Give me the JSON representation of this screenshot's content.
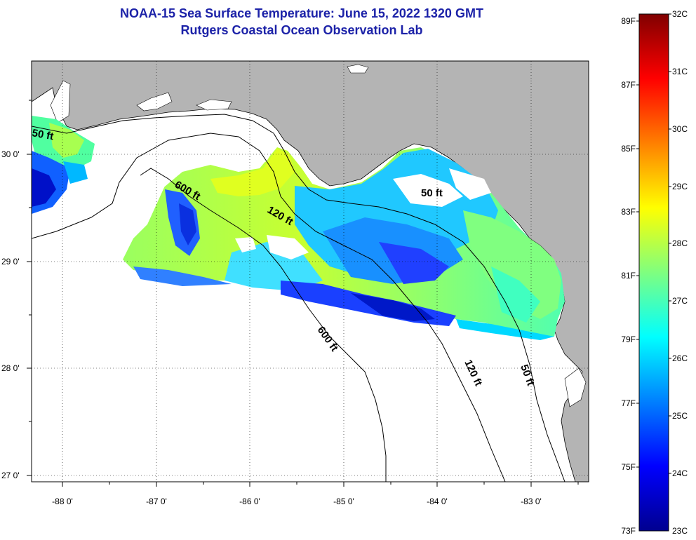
{
  "header": {
    "title": "NOAA-15 Sea Surface Temperature:  June 15, 2022 1320 GMT",
    "subtitle": "Rutgers Coastal Ocean Observation Lab"
  },
  "map": {
    "longitude_labels": [
      "-88 0'",
      "-87 0'",
      "-86 0'",
      "-85 0'",
      "-84 0'",
      "-83 0'"
    ],
    "latitude_labels": [
      "30 0'",
      "29 0'",
      "28 0'",
      "27 0'"
    ],
    "isobath_labels": [
      "50 ft",
      "600 ft",
      "120 ft",
      "50 ft",
      "600 ft",
      "120 ft",
      "50 ft"
    ],
    "colors": {
      "land": "#b4b4b4",
      "nodata_water": "#ffffff",
      "coastline": "#000000"
    }
  },
  "colorbar": {
    "fahrenheit_labels": [
      "89F",
      "87F",
      "85F",
      "83F",
      "81F",
      "79F",
      "77F",
      "75F",
      "73F"
    ],
    "celsius_labels": [
      "32C",
      "31C",
      "30C",
      "29C",
      "28C",
      "27C",
      "26C",
      "25C",
      "24C",
      "23C"
    ],
    "range_celsius": [
      23,
      32
    ],
    "colormap": "jet"
  }
}
